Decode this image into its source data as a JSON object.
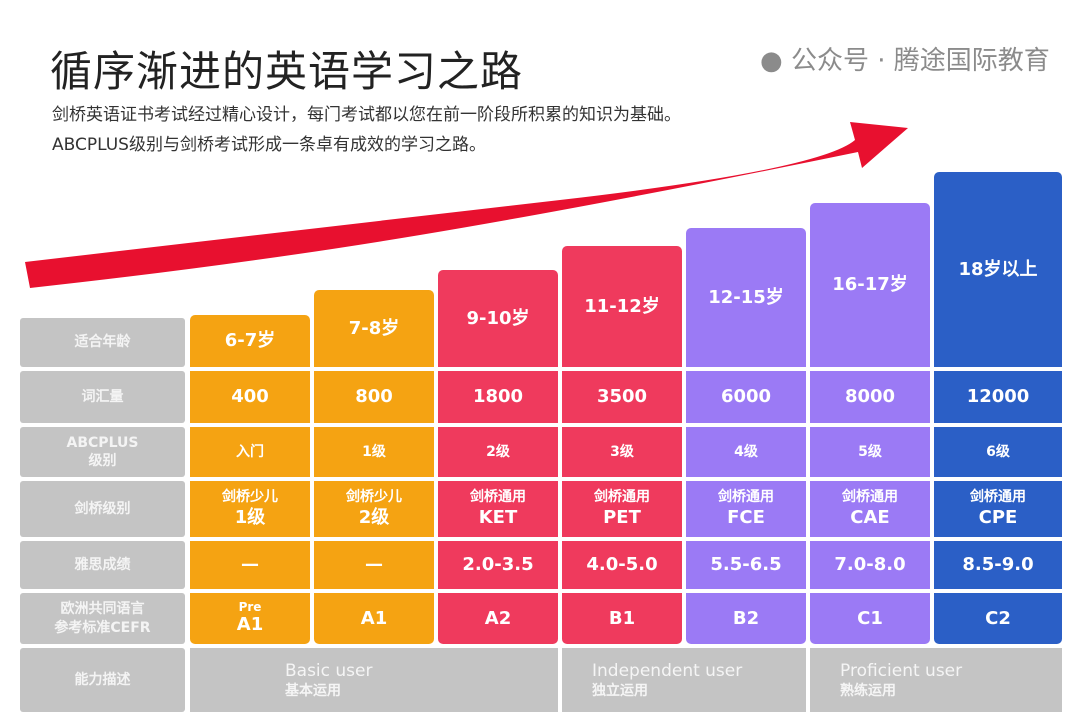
{
  "title": "循序渐进的英语学习之路",
  "subtitle_lines": [
    "剑桥英语证书考试经过精心设计，每门考试都以您在前一阶段所积累的知识为基础。",
    "ABCPLUS级别与剑桥考试形成一条卓有成效的学习之路。"
  ],
  "row_labels": [
    "适合年龄",
    "词汇量",
    "ABCPLUS\n级别",
    "剑桥级别",
    "雅思成绩",
    "欧洲共同语言\n参考标准CEFR",
    "能力描述"
  ],
  "columns": [
    {
      "age": "6-7岁",
      "vocab": "400",
      "abcplus": "入门",
      "cambridge": [
        "剑桥少儿",
        "1级"
      ],
      "ielts": "—",
      "cefr_pre": "Pre",
      "cefr": "A1",
      "color": "#f5a312"
    },
    {
      "age": "7-8岁",
      "vocab": "800",
      "abcplus": "1级",
      "cambridge": [
        "剑桥少儿",
        "2级"
      ],
      "ielts": "—",
      "cefr_pre": "",
      "cefr": "A1",
      "color": "#f5a312"
    },
    {
      "age": "9-10岁",
      "vocab": "1800",
      "abcplus": "2级",
      "cambridge": [
        "剑桥通用",
        "KET"
      ],
      "ielts": "2.0-3.5",
      "cefr_pre": "",
      "cefr": "A2",
      "color": "#ef3a5d"
    },
    {
      "age": "11-12岁",
      "vocab": "3500",
      "abcplus": "3级",
      "cambridge": [
        "剑桥通用",
        "PET"
      ],
      "ielts": "4.0-5.0",
      "cefr_pre": "",
      "cefr": "B1",
      "color": "#ef3a5d"
    },
    {
      "age": "12-15岁",
      "vocab": "6000",
      "abcplus": "4级",
      "cambridge": [
        "剑桥通用",
        "FCE"
      ],
      "ielts": "5.5-6.5",
      "cefr_pre": "",
      "cefr": "B2",
      "color": "#9b7af5"
    },
    {
      "age": "16-17岁",
      "vocab": "8000",
      "abcplus": "5级",
      "cambridge": [
        "剑桥通用",
        "CAE"
      ],
      "ielts": "7.0-8.0",
      "cefr_pre": "",
      "cefr": "C1",
      "color": "#9b7af5"
    },
    {
      "age": "18岁以上",
      "vocab": "12000",
      "abcplus": "6级",
      "cambridge": [
        "剑桥通用",
        "CPE"
      ],
      "ielts": "8.5-9.0",
      "cefr_pre": "",
      "cefr": "C2",
      "color": "#2b5fc6"
    }
  ],
  "descriptions": [
    {
      "en": "Basic user",
      "cn": "基本运用"
    },
    {
      "en": "Independent user",
      "cn": "独立运用"
    },
    {
      "en": "Proficient user",
      "cn": "熟练运用"
    }
  ],
  "watermark": "公众号 · 腾途国际教育",
  "arrow_color": "#e8102f"
}
